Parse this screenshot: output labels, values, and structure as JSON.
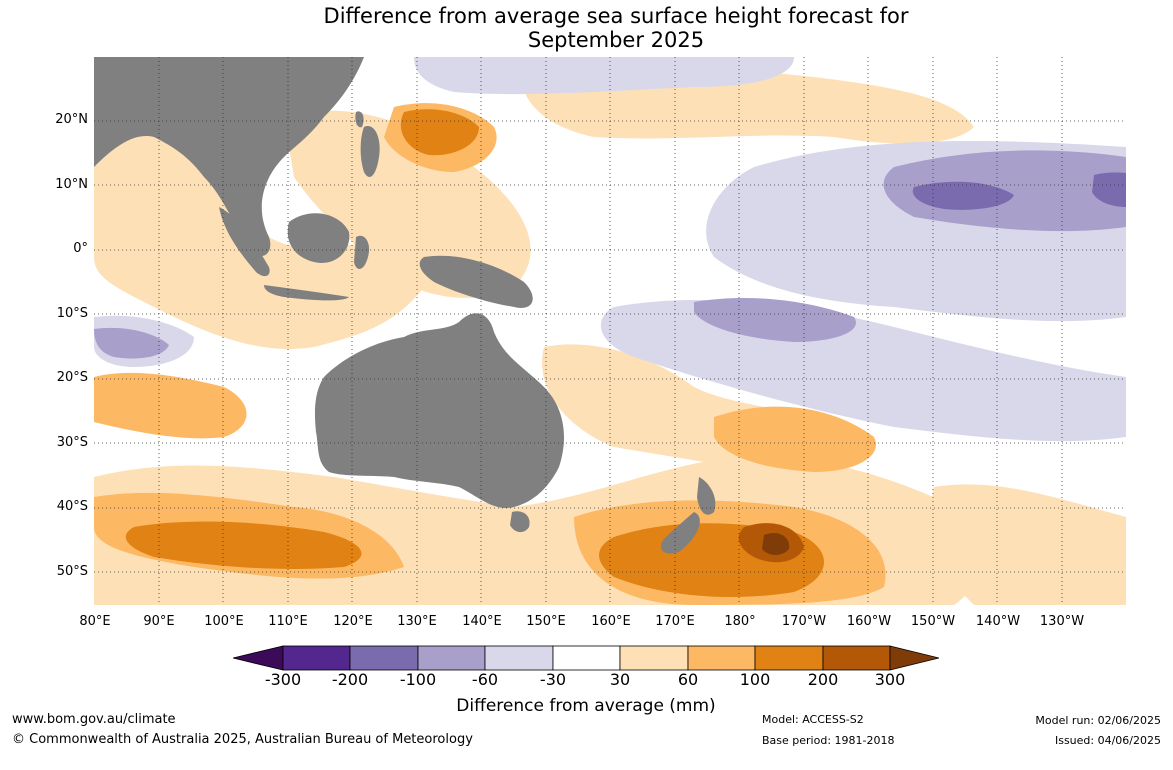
{
  "title": {
    "line1": "Difference from average sea surface height forecast for",
    "line2": "September 2025"
  },
  "map": {
    "lat_labels": [
      "20°N",
      "10°N",
      "0°",
      "10°S",
      "20°S",
      "30°S",
      "40°S",
      "50°S"
    ],
    "lon_labels": [
      "80°E",
      "90°E",
      "100°E",
      "110°E",
      "120°E",
      "130°E",
      "140°E",
      "150°E",
      "160°E",
      "170°E",
      "180°",
      "170°W",
      "160°W",
      "150°W",
      "140°W",
      "130°W"
    ],
    "land_color": "#808080",
    "gridlines": "dotted"
  },
  "legend": {
    "title": "Difference from average (mm)",
    "ticks": [
      "-300",
      "-200",
      "-100",
      "-60",
      "-30",
      "30",
      "60",
      "100",
      "200",
      "300"
    ],
    "colors": [
      "#3d0a5a",
      "#54278f",
      "#7a6aae",
      "#a89fcb",
      "#d9d8ea",
      "#ffffff",
      "#fee0b6",
      "#fdb863",
      "#e08214",
      "#b35806",
      "#7f3b08"
    ]
  },
  "footer": {
    "url": "www.bom.gov.au/climate",
    "copyright": "© Commonwealth of Australia 2025, Australian Bureau of Meteorology",
    "model": "Model: ACCESS-S2",
    "base_period": "Base period: 1981-2018",
    "model_run": "Model run: 02/06/2025",
    "issued": "Issued: 04/06/2025"
  }
}
